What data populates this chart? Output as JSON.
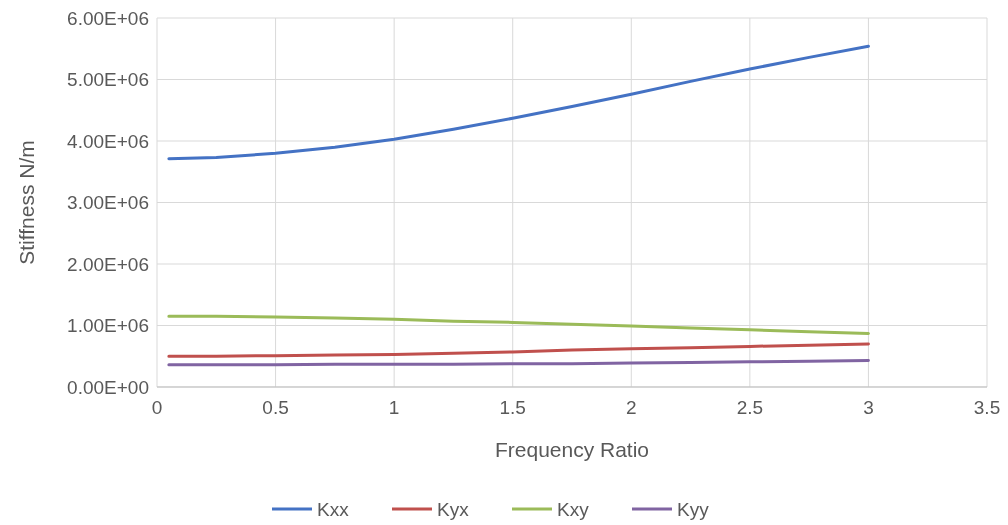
{
  "chart_data": {
    "type": "line",
    "xlabel": "Frequency Ratio",
    "ylabel": "Stiffness N/m",
    "x": [
      0.05,
      0.25,
      0.5,
      0.75,
      1,
      1.25,
      1.5,
      1.75,
      2,
      2.25,
      2.5,
      2.75,
      3
    ],
    "series": [
      {
        "name": "Kxx",
        "color": "#4472c4",
        "values": [
          3710000,
          3730000,
          3800000,
          3900000,
          4030000,
          4190000,
          4370000,
          4560000,
          4760000,
          4970000,
          5170000,
          5360000,
          5540000
        ]
      },
      {
        "name": "Kyx",
        "color": "#c0504d",
        "values": [
          500000,
          500000,
          510000,
          520000,
          530000,
          550000,
          570000,
          600000,
          620000,
          640000,
          660000,
          680000,
          700000
        ]
      },
      {
        "name": "Kxy",
        "color": "#9bbb59",
        "values": [
          1150000,
          1150000,
          1140000,
          1120000,
          1100000,
          1070000,
          1050000,
          1020000,
          990000,
          960000,
          930000,
          900000,
          870000
        ]
      },
      {
        "name": "Kyy",
        "color": "#8064a2",
        "values": [
          360000,
          360000,
          360000,
          370000,
          370000,
          370000,
          380000,
          380000,
          390000,
          400000,
          410000,
          420000,
          430000
        ]
      }
    ],
    "xlim": [
      0,
      3.5
    ],
    "xticks": [
      0,
      0.5,
      1,
      1.5,
      2,
      2.5,
      3,
      3.5
    ],
    "ylim": [
      0,
      6000000
    ],
    "yticks": [
      {
        "value": 0,
        "label": "0.00E+00"
      },
      {
        "value": 1000000,
        "label": "1.00E+06"
      },
      {
        "value": 2000000,
        "label": "2.00E+06"
      },
      {
        "value": 3000000,
        "label": "3.00E+06"
      },
      {
        "value": 4000000,
        "label": "4.00E+06"
      },
      {
        "value": 5000000,
        "label": "5.00E+06"
      },
      {
        "value": 6000000,
        "label": "6.00E+06"
      }
    ],
    "grid": true,
    "legend": "bottom",
    "marker": "none",
    "line_style": "solid"
  }
}
